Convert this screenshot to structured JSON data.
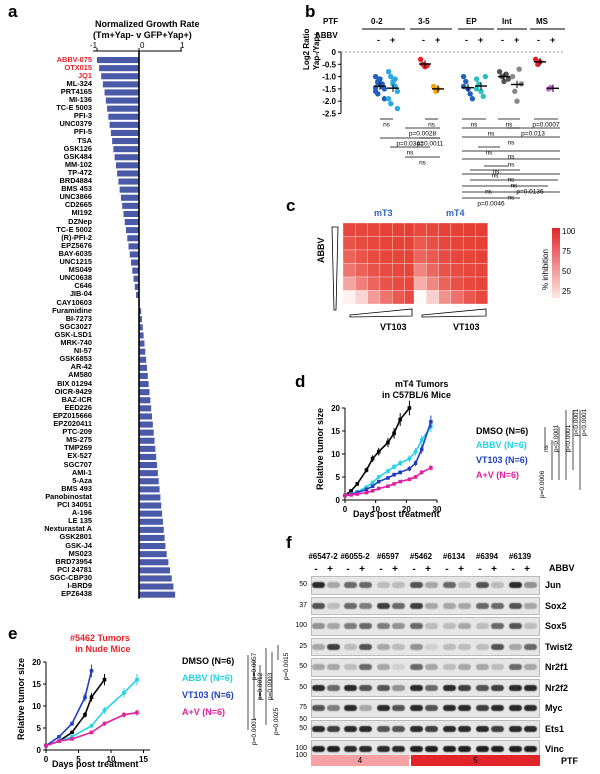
{
  "panels": [
    "a",
    "b",
    "c",
    "d",
    "e",
    "f"
  ],
  "panel_a": {
    "title_line1": "Normalized Growth Rate",
    "title_line2": "(Tm+Yap- v GFP+Yap+)",
    "ticks": [
      "-1",
      "0",
      "1"
    ],
    "bar_color": "#4a5aa8",
    "highlight_color": "#e2242a",
    "compounds": [
      "ABBV-075",
      "OTX015",
      "JQ1",
      "ML-324",
      "PRT4165",
      "MI-136",
      "TC-E 5003",
      "PFI-3",
      "UNC0379",
      "PFI-5",
      "TSA",
      "GSK126",
      "GSK484",
      "MM-102",
      "TP-472",
      "BRD4884",
      "BMS 453",
      "UNC3866",
      "CD2665",
      "MI192",
      "DZNep",
      "TC-E 5002",
      "(R)-PFI-2",
      "EPZ5676",
      "BAY-6035",
      "UNC1215",
      "MS049",
      "UNC0638",
      "C646",
      "JIB-04",
      "CAY10603",
      "Furamidine",
      "BI-7273",
      "SGC3027",
      "GSK-LSD1",
      "MRK-740",
      "NI-57",
      "GSK6853",
      "AR-42",
      "AM580",
      "BIX 01294",
      "OICR-9429",
      "BAZ-ICR",
      "EED226",
      "EPZ015666",
      "EPZ020411",
      "PTC-209",
      "MS-275",
      "TMP269",
      "EX-527",
      "SGC707",
      "AMI-1",
      "5-Aza",
      "BMS 493",
      "Panobinostat",
      "PCI 34051",
      "A-196",
      "LE 135",
      "Nexturastat A",
      "GSK2801",
      "GSK-J4",
      "MS023",
      "BRD73954",
      "PCI 24781",
      "SGC-CBP30",
      "I-BRD9",
      "EPZ6438"
    ],
    "values": [
      -1.0,
      -0.95,
      -0.9,
      -0.86,
      -0.82,
      -0.79,
      -0.76,
      -0.73,
      -0.7,
      -0.67,
      -0.64,
      -0.61,
      -0.58,
      -0.55,
      -0.52,
      -0.49,
      -0.46,
      -0.43,
      -0.4,
      -0.37,
      -0.34,
      -0.31,
      -0.28,
      -0.25,
      -0.22,
      -0.19,
      -0.16,
      -0.13,
      -0.1,
      -0.07,
      0.02,
      0.05,
      0.07,
      0.09,
      0.11,
      0.13,
      0.15,
      0.17,
      0.19,
      0.21,
      0.23,
      0.25,
      0.27,
      0.29,
      0.31,
      0.33,
      0.35,
      0.37,
      0.39,
      0.41,
      0.43,
      0.45,
      0.47,
      0.49,
      0.51,
      0.53,
      0.55,
      0.57,
      0.59,
      0.61,
      0.63,
      0.66,
      0.7,
      0.74,
      0.78,
      0.82,
      0.86
    ],
    "highlighted": [
      "ABBV-075",
      "OTX015",
      "JQ1"
    ]
  },
  "panel_b": {
    "ptf_label": "PTF",
    "abbv_label": "ABBV",
    "groups": [
      "0-2",
      "3-5",
      "EP",
      "Int",
      "MS"
    ],
    "signs": [
      "-",
      "+"
    ],
    "ylabel_line1": "Log2 Ratio",
    "ylabel_line2": "Yap-/Yap+",
    "yticks": [
      "0",
      "-0.5",
      "-1.0",
      "-1.5",
      "-2.0",
      "-2.5"
    ],
    "pvals": [
      "ns",
      "ns",
      "p=0.0028",
      "p=0.0342",
      "p=0.0011",
      "ns",
      "ns",
      "ns",
      "ns",
      "p=0.0007",
      "ns",
      "p=0.013",
      "ns",
      "ns",
      "ns",
      "ns",
      "ns",
      "ns",
      "ns",
      "ns",
      "ns",
      "ns",
      "p=0.0136",
      "p=0.0046"
    ],
    "colors": [
      "#1f5fbf",
      "#29a9e0",
      "#e2242a",
      "#f4a300",
      "#1f5fbf",
      "#29c0c0",
      "#555555",
      "#888888",
      "#e2242a",
      "#c060d0"
    ]
  },
  "panel_c": {
    "title_left": "mT3",
    "title_right": "mT4",
    "abbv_label": "ABBV",
    "vt_label": "VT103",
    "colorbar_label": "% inhibition",
    "colorbar_ticks": [
      "100",
      "75",
      "50",
      "25"
    ],
    "title_color": "#3060c0"
  },
  "panel_d": {
    "title_line1": "mT4 Tumors",
    "title_line2": "in C57BL/6 Mice",
    "ylabel": "Relative tumor size",
    "xlabel": "Days post treatment",
    "yticks": [
      "0",
      "5",
      "10",
      "15",
      "20"
    ],
    "xticks": [
      "0",
      "10",
      "20",
      "30"
    ],
    "legend": [
      {
        "label": "DMSO (N=6)",
        "color": "#000000"
      },
      {
        "label": "ABBV (N=6)",
        "color": "#22d3e6"
      },
      {
        "label": "VT103 (N=6)",
        "color": "#2040c0"
      },
      {
        "label": "A+V (N=6)",
        "color": "#e020a0"
      }
    ],
    "pvals": [
      "ns",
      "p=0.0006",
      "p<0.0001",
      "p<0.0001",
      "p<0.0001",
      "p<0.0001"
    ]
  },
  "panel_e": {
    "title_line1": "#5462 Tumors",
    "title_line2": "in Nude Mice",
    "title_color": "#e2242a",
    "ylabel": "Relative tumor size",
    "xlabel": "Days post treatment",
    "yticks": [
      "0",
      "5",
      "10",
      "15",
      "20"
    ],
    "xticks": [
      "0",
      "5",
      "10",
      "15"
    ],
    "legend": [
      {
        "label": "DMSO (N=6)",
        "color": "#000000"
      },
      {
        "label": "ABBV (N=6)",
        "color": "#22d3e6"
      },
      {
        "label": "VT103 (N=6)",
        "color": "#2040c0"
      },
      {
        "label": "A+V (N=6)",
        "color": "#e020a0"
      }
    ],
    "pvals": [
      "p=0.0001",
      "p=0.0057",
      "p=0.0012",
      "p=0.0003",
      "p=0.0025",
      "p=0.0015"
    ]
  },
  "panel_f": {
    "samples": [
      "#6547-2",
      "#6055-2",
      "#6597",
      "#5462",
      "#6134",
      "#6394",
      "#6139"
    ],
    "signs": [
      "-",
      "+"
    ],
    "abbv_label": "ABBV",
    "rows": [
      {
        "label": "Jun",
        "mw": "50"
      },
      {
        "label": "Sox2",
        "mw": "37"
      },
      {
        "label": "Sox5",
        "mw": "100"
      },
      {
        "label": "Twist2",
        "mw": "25"
      },
      {
        "label": "Nr2f1",
        "mw": "50"
      },
      {
        "label": "Nr2f2",
        "mw": "50"
      },
      {
        "label": "Myc",
        "mw": "75"
      },
      {
        "label": "Ets1",
        "mw": "50"
      },
      {
        "label": "Vinc",
        "mw": "100"
      }
    ],
    "extra_mw": [
      "50",
      "100"
    ],
    "ptf_values": [
      "4",
      "5"
    ],
    "ptf_label": "PTF",
    "ptf_colors": [
      "#f4a0a4",
      "#e2242a"
    ]
  },
  "chart_data": [
    {
      "type": "bar",
      "title": "Normalized Growth Rate (Tm+Yap- v GFP+Yap+)",
      "xlabel": "",
      "ylabel": "",
      "xlim": [
        -1.3,
        1.3
      ],
      "note": "values estimated, horizontal waterfall bars"
    },
    {
      "type": "line",
      "title": "mT4 Tumors in C57BL/6 Mice",
      "xlabel": "Days post treatment",
      "ylabel": "Relative tumor size",
      "xlim": [
        0,
        30
      ],
      "ylim": [
        0,
        20
      ],
      "x": [
        0,
        2,
        4,
        7,
        9,
        11,
        14,
        16,
        18,
        21,
        23,
        25,
        28
      ],
      "series": [
        {
          "name": "DMSO (N=6)",
          "color": "#000000",
          "x": [
            0,
            2,
            4,
            7,
            9,
            11,
            14,
            16,
            18,
            21
          ],
          "values": [
            1,
            2,
            3.5,
            6.5,
            9,
            10.5,
            12.5,
            14.5,
            17.5,
            20
          ]
        },
        {
          "name": "ABBV (N=6)",
          "color": "#22d3e6",
          "values": [
            1,
            1.3,
            1.8,
            2.8,
            3.8,
            5,
            6.3,
            7.2,
            8,
            9,
            10.5,
            13,
            16
          ]
        },
        {
          "name": "VT103 (N=6)",
          "color": "#2040c0",
          "values": [
            1,
            1.2,
            1.6,
            2.3,
            3,
            4,
            4.8,
            5.5,
            6,
            6.8,
            8,
            11,
            17
          ]
        },
        {
          "name": "A+V (N=6)",
          "color": "#e020a0",
          "values": [
            1,
            1.1,
            1.3,
            1.6,
            2,
            2.5,
            3,
            3.5,
            4,
            4.5,
            5,
            6,
            7
          ]
        }
      ]
    },
    {
      "type": "line",
      "title": "#5462 Tumors in Nude Mice",
      "xlabel": "Days post treatment",
      "ylabel": "Relative tumor size",
      "xlim": [
        0,
        16
      ],
      "ylim": [
        0,
        20
      ],
      "series": [
        {
          "name": "DMSO (N=6)",
          "color": "#000000",
          "x": [
            0,
            2,
            4,
            6,
            7,
            9
          ],
          "values": [
            1,
            2,
            4,
            8,
            12,
            16
          ]
        },
        {
          "name": "ABBV (N=6)",
          "color": "#22d3e6",
          "x": [
            0,
            2,
            4,
            7,
            9,
            12,
            14
          ],
          "values": [
            1,
            2,
            3,
            5.5,
            9,
            13,
            16
          ]
        },
        {
          "name": "VT103 (N=6)",
          "color": "#2040c0",
          "x": [
            0,
            2,
            4,
            6,
            7
          ],
          "values": [
            1,
            3,
            6,
            12,
            18
          ]
        },
        {
          "name": "A+V (N=6)",
          "color": "#e020a0",
          "x": [
            0,
            2,
            4,
            7,
            9,
            12,
            14
          ],
          "values": [
            1,
            2,
            2.5,
            4,
            6,
            8,
            8.5
          ]
        }
      ]
    }
  ]
}
